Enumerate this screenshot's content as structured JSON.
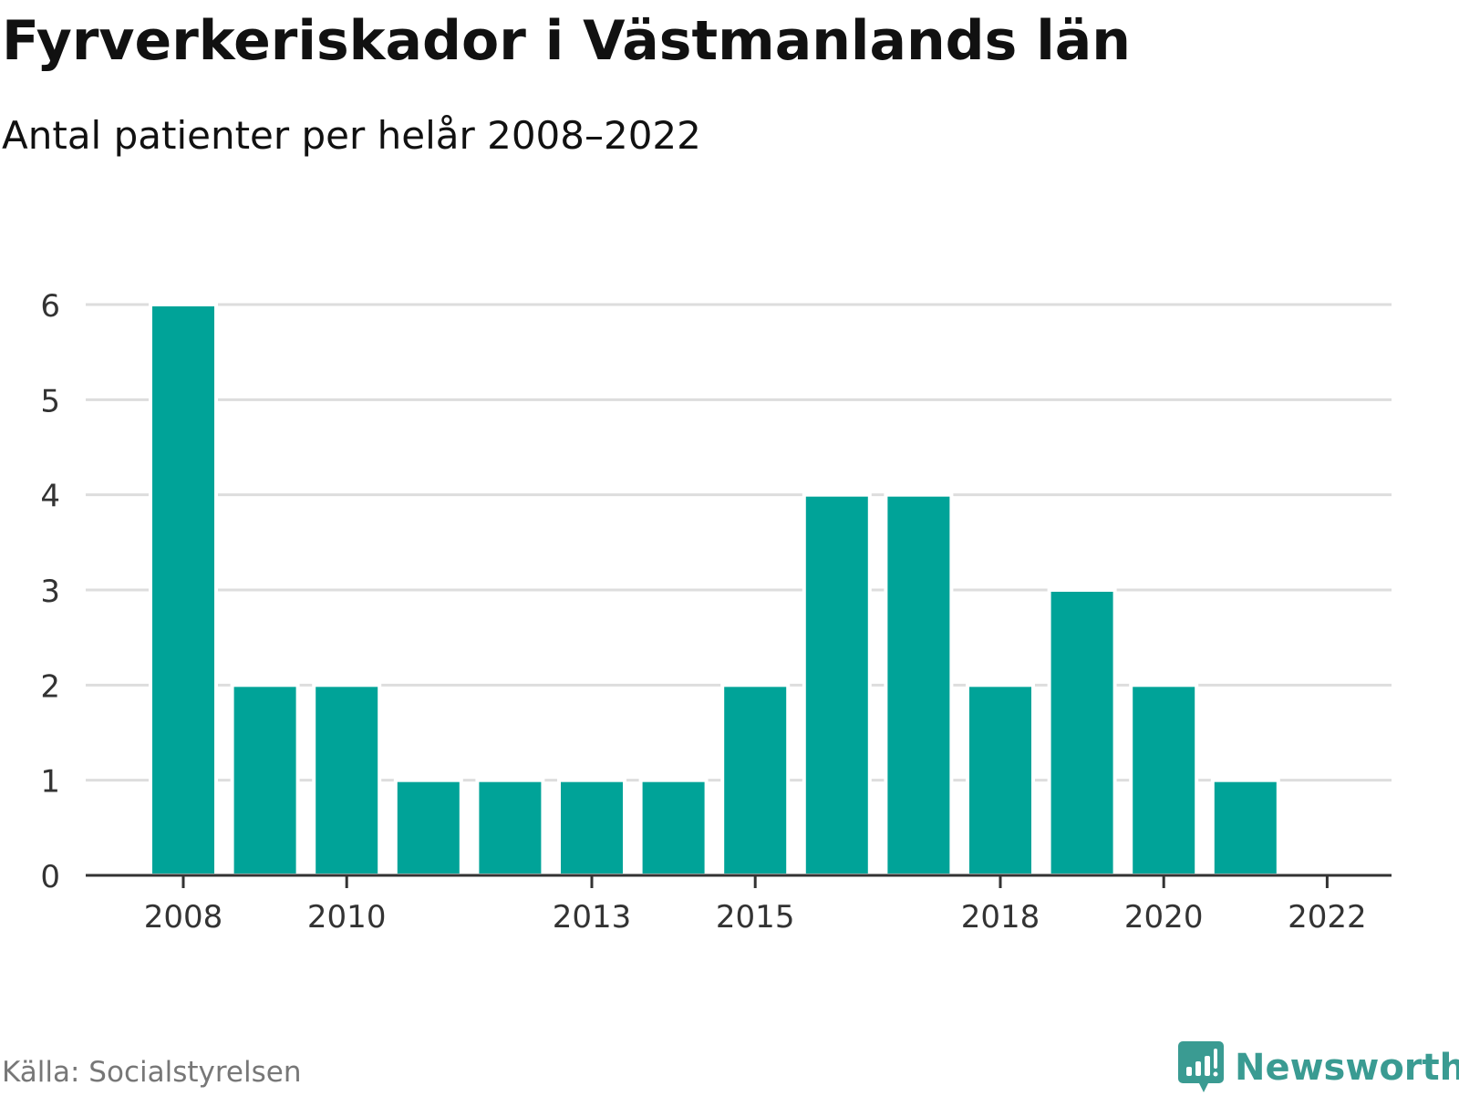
{
  "header": {
    "title": "Fyrverkeriskador i Västmanlands län",
    "subtitle": "Antal patienter per helår 2008–2022"
  },
  "footer": {
    "source": "Källa: Socialstyrelsen",
    "brand": "Newsworthy"
  },
  "colors": {
    "bar": "#00a398",
    "grid": "#dddddd",
    "axis": "#333333",
    "brand": "#3a9b92"
  },
  "icons": {
    "brand_logo": "bar-chart-speech-bubble-icon"
  },
  "chart_data": {
    "type": "bar",
    "categories": [
      "2008",
      "2009",
      "2010",
      "2011",
      "2012",
      "2013",
      "2014",
      "2015",
      "2016",
      "2017",
      "2018",
      "2019",
      "2020",
      "2021",
      "2022"
    ],
    "values": [
      6,
      2,
      2,
      1,
      1,
      1,
      1,
      2,
      4,
      4,
      2,
      3,
      2,
      1,
      0
    ],
    "x_tick_labels": [
      "2008",
      "2010",
      "2013",
      "2015",
      "2018",
      "2020",
      "2022"
    ],
    "y_ticks": [
      0,
      1,
      2,
      3,
      4,
      5,
      6
    ],
    "ylim": [
      0,
      6
    ],
    "xlabel": "",
    "ylabel": "",
    "grid": true,
    "legend": "none"
  }
}
